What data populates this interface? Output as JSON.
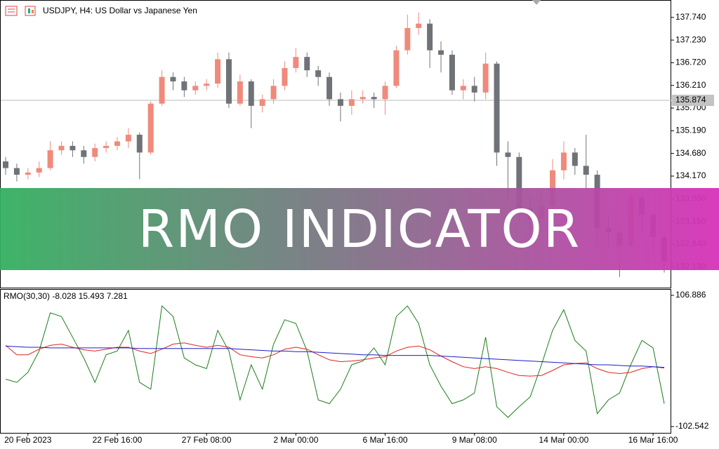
{
  "chart_data": [
    {
      "type": "candlestick",
      "title": "USDJPY, H4:  US Dollar vs Japanese Yen",
      "categories": [
        null,
        null,
        "20 Feb 2023",
        null,
        null,
        null,
        null,
        null,
        null,
        null,
        "22 Feb 16:00",
        null,
        null,
        null,
        null,
        null,
        null,
        null,
        "27 Feb 08:00",
        null,
        null,
        null,
        null,
        null,
        null,
        null,
        "2 Mar 00:00",
        null,
        null,
        null,
        null,
        null,
        null,
        null,
        "6 Mar 16:00",
        null,
        null,
        null,
        null,
        null,
        null,
        null,
        "9 Mar 08:00",
        null,
        null,
        null,
        null,
        null,
        null,
        null,
        "14 Mar 00:00",
        null,
        null,
        null,
        null,
        null,
        null,
        null,
        "16 Mar 16:00",
        null
      ],
      "open": [
        134.5,
        134.35,
        134.2,
        134.25,
        134.35,
        134.75,
        134.85,
        134.75,
        134.6,
        134.8,
        134.85,
        134.95,
        135.1,
        134.7,
        135.8,
        136.4,
        136.3,
        136.1,
        136.2,
        136.25,
        136.8,
        135.8,
        136.3,
        135.75,
        135.9,
        136.2,
        136.6,
        136.85,
        136.55,
        136.4,
        135.9,
        135.75,
        135.9,
        135.95,
        135.9,
        136.2,
        137.0,
        137.5,
        137.6,
        137.0,
        136.9,
        136.1,
        136.2,
        136.05,
        136.7,
        134.7,
        134.6,
        133.45,
        133.2,
        133.5,
        134.3,
        134.7,
        134.4,
        134.2,
        133.0,
        132.9,
        132.6,
        133.7,
        133.3,
        132.8
      ],
      "high": [
        134.6,
        134.45,
        134.35,
        134.5,
        134.95,
        134.95,
        134.95,
        134.85,
        134.9,
        134.95,
        135.05,
        135.25,
        135.15,
        135.85,
        136.55,
        136.5,
        136.4,
        136.3,
        136.35,
        136.95,
        136.95,
        136.45,
        136.35,
        136.0,
        136.35,
        136.75,
        137.05,
        136.95,
        136.65,
        136.5,
        136.05,
        136.1,
        136.1,
        136.05,
        136.3,
        137.1,
        137.8,
        137.85,
        137.7,
        137.2,
        137.0,
        136.35,
        136.4,
        136.95,
        136.75,
        134.95,
        134.7,
        133.7,
        133.85,
        134.55,
        134.95,
        134.8,
        135.1,
        134.3,
        133.3,
        133.1,
        133.9,
        133.8,
        133.35,
        132.9
      ],
      "low": [
        134.2,
        134.05,
        134.1,
        134.15,
        134.3,
        134.65,
        134.6,
        134.45,
        134.5,
        134.7,
        134.75,
        134.8,
        134.1,
        134.65,
        135.75,
        136.1,
        135.95,
        136.0,
        136.1,
        136.15,
        135.7,
        135.75,
        135.25,
        135.6,
        135.8,
        136.1,
        136.5,
        136.4,
        136.2,
        135.75,
        135.4,
        135.55,
        135.8,
        135.7,
        135.55,
        136.15,
        136.9,
        137.35,
        136.6,
        136.5,
        136.0,
        135.9,
        135.85,
        135.9,
        134.4,
        133.6,
        133.1,
        132.9,
        133.0,
        133.4,
        134.1,
        134.2,
        133.9,
        132.6,
        132.6,
        131.9,
        132.5,
        132.9,
        132.4,
        132.0
      ],
      "close": [
        134.35,
        134.2,
        134.25,
        134.35,
        134.75,
        134.85,
        134.75,
        134.6,
        134.8,
        134.85,
        134.95,
        135.1,
        134.7,
        135.8,
        136.4,
        136.3,
        136.1,
        136.2,
        136.25,
        136.8,
        135.8,
        136.3,
        135.75,
        135.9,
        136.2,
        136.6,
        136.85,
        136.55,
        136.4,
        135.9,
        135.75,
        135.9,
        135.95,
        135.9,
        136.2,
        137.0,
        137.5,
        137.6,
        137.0,
        136.9,
        136.1,
        136.2,
        136.05,
        136.7,
        134.7,
        134.6,
        133.45,
        133.2,
        133.5,
        134.3,
        134.7,
        134.4,
        134.2,
        133.0,
        132.9,
        132.6,
        133.7,
        133.3,
        132.8,
        132.25
      ],
      "up_color": "#ef8a7c",
      "down_color": "#6f7378",
      "ylim": [
        131.66,
        138.1
      ],
      "yticks": [
        {
          "value": 137.74,
          "label": "137.740"
        },
        {
          "value": 137.23,
          "label": "137.230"
        },
        {
          "value": 136.72,
          "label": "136.720"
        },
        {
          "value": 136.21,
          "label": "136.210"
        },
        {
          "value": 135.7,
          "label": "135.700"
        },
        {
          "value": 135.19,
          "label": "135.190"
        },
        {
          "value": 134.68,
          "label": "134.680"
        },
        {
          "value": 134.17,
          "label": "134.170"
        },
        {
          "value": 133.66,
          "label": "133.660"
        },
        {
          "value": 133.15,
          "label": "133.150"
        },
        {
          "value": 132.64,
          "label": "132.640"
        },
        {
          "value": 132.13,
          "label": "132.130"
        }
      ],
      "current_price": 135.874
    },
    {
      "type": "line",
      "legend": "RMO(30,30) -8.028 15.493 7.281",
      "ylim": [
        -112.6,
        115.8
      ],
      "yticks": [
        106.886,
        -102.542
      ],
      "series": [
        {
          "color": "#1b7d1b",
          "values": [
            -27,
            -32,
            -16,
            18,
            79,
            73,
            40,
            7,
            -32,
            12,
            18,
            51,
            -32,
            -43,
            90,
            73,
            7,
            -4,
            -10,
            51,
            18,
            -60,
            -4,
            -43,
            29,
            68,
            62,
            18,
            -60,
            -66,
            -43,
            -4,
            2,
            23,
            -4,
            73,
            90,
            62,
            -4,
            -38,
            -66,
            -60,
            -49,
            40,
            -71,
            -88,
            -71,
            -55,
            -4,
            51,
            84,
            35,
            18,
            -82,
            -60,
            -49,
            -4,
            35,
            23,
            -66
          ]
        },
        {
          "color": "#e0231c",
          "values": [
            27,
            12,
            12,
            21,
            27,
            29,
            24,
            20,
            18,
            21,
            24,
            24,
            18,
            14,
            21,
            29,
            31,
            27,
            24,
            27,
            24,
            12,
            9,
            7,
            12,
            21,
            24,
            21,
            12,
            4,
            1,
            2,
            4,
            7,
            9,
            18,
            24,
            26,
            20,
            10,
            1,
            -7,
            -10,
            -7,
            -10,
            -16,
            -21,
            -22,
            -21,
            -13,
            -4,
            -2,
            -1,
            -10,
            -16,
            -18,
            -16,
            -10,
            -7,
            -9
          ]
        },
        {
          "color": "#1c1cc8",
          "values": [
            26,
            25,
            24,
            24,
            23,
            23,
            23,
            23,
            23,
            23,
            23,
            23,
            22,
            22,
            22,
            22,
            22,
            22,
            22,
            22,
            22,
            21,
            20,
            19,
            18,
            18,
            17,
            17,
            16,
            15,
            14,
            13,
            12,
            12,
            11,
            11,
            11,
            11,
            11,
            10,
            9,
            8,
            7,
            6,
            5,
            4,
            3,
            2,
            1,
            0,
            -1,
            -2,
            -3,
            -4,
            -4,
            -5,
            -6,
            -6,
            -7,
            -8
          ]
        }
      ]
    }
  ],
  "banner": "RMO INDICATOR"
}
